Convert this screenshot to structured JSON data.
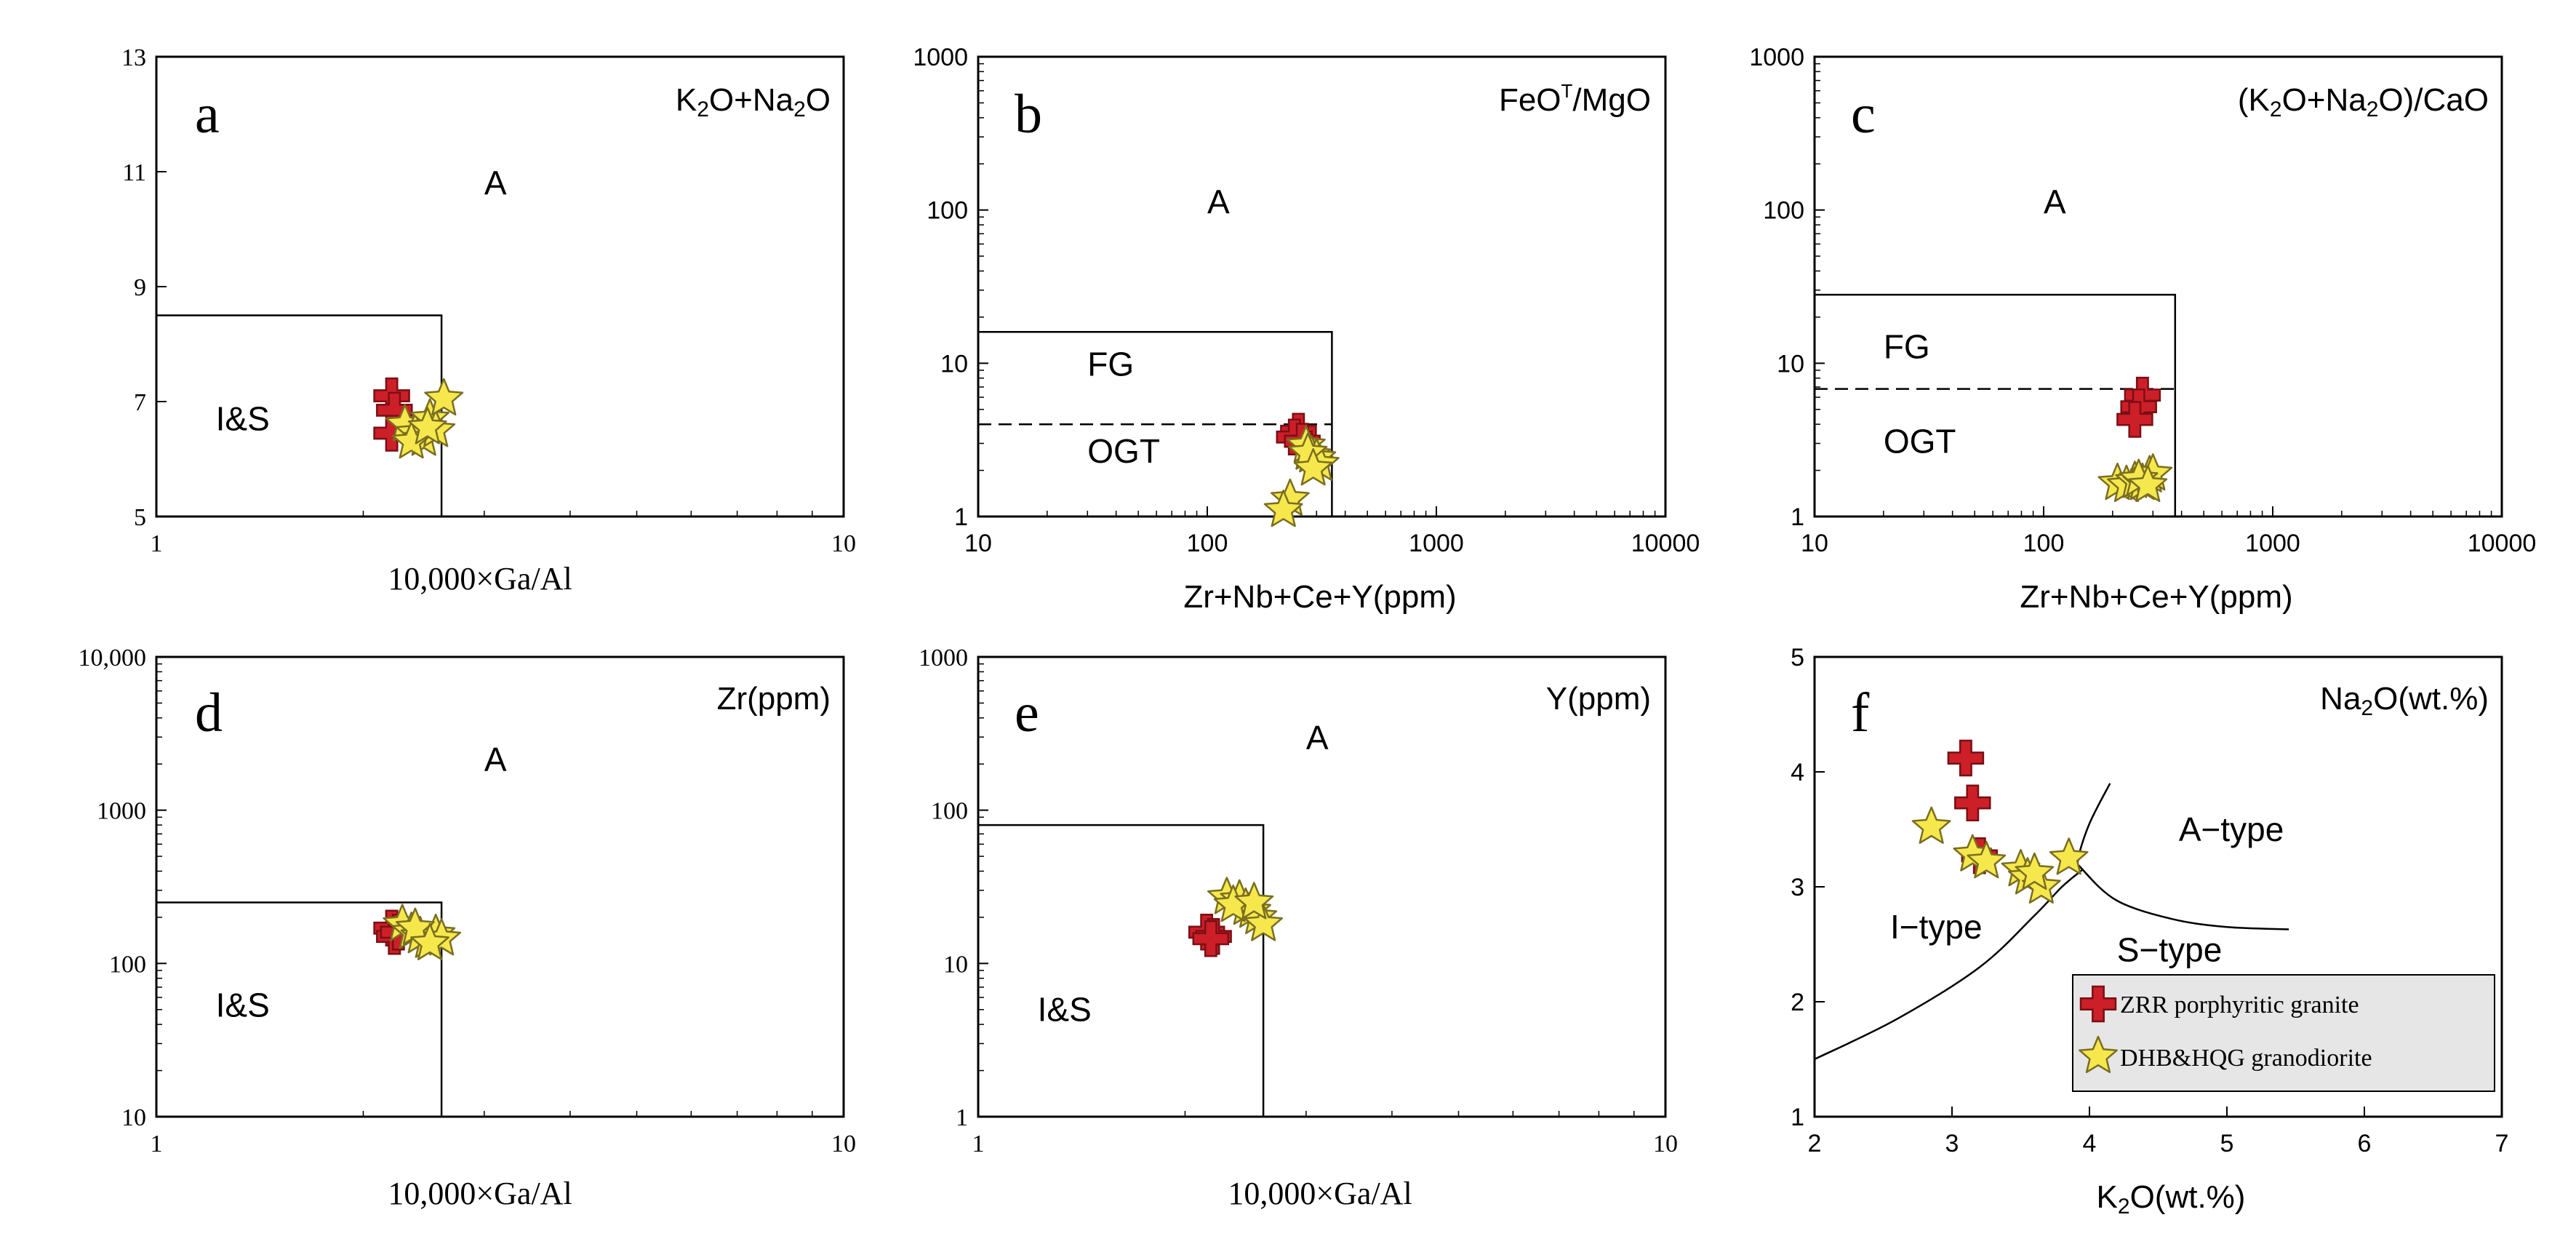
{
  "colors": {
    "zrr_fill": "#cc1f28",
    "zrr_stroke": "#7a0f14",
    "dhb_fill": "#f6e84c",
    "dhb_stroke": "#7a6e20",
    "legend_bg": "#e6e6e6"
  },
  "legend": {
    "position": "bottom-right of panel f",
    "items": [
      {
        "label": "ZRR porphyritic granite",
        "marker": "red-cross-icon",
        "series_key": "zrr"
      },
      {
        "label": "DHB&HQG granodiorite",
        "marker": "yellow-star-icon",
        "series_key": "dhb"
      }
    ]
  },
  "chart_data": [
    {
      "id": "a",
      "type": "scatter",
      "panel_label": "a",
      "corner_title": "K2O+Na2O",
      "xlabel": "10,000×Ga/Al",
      "xscale": "log",
      "xlim": [
        1,
        10
      ],
      "yscale": "linear",
      "ylim": [
        5,
        13
      ],
      "xticks": [
        {
          "v": 1,
          "label": "1"
        },
        {
          "v": 10,
          "label": "10"
        }
      ],
      "yticks": [
        {
          "v": 5,
          "label": "5"
        },
        {
          "v": 7,
          "label": "7"
        },
        {
          "v": 9,
          "label": "9"
        },
        {
          "v": 11,
          "label": "11"
        },
        {
          "v": 13,
          "label": "13"
        }
      ],
      "tick_font": "serif",
      "xlabel_font": "serif",
      "boundaries": [
        {
          "style": "solid",
          "points": [
            [
              1,
              8.5
            ],
            [
              2.6,
              8.5
            ],
            [
              2.6,
              5
            ]
          ]
        }
      ],
      "regions": [
        {
          "label": "A",
          "x": 3.0,
          "y": 10.6
        },
        {
          "label": "I&S",
          "x": 1.22,
          "y": 6.5
        }
      ],
      "series": [
        {
          "key": "zrr",
          "points": [
            [
              2.2,
              7.1
            ],
            [
              2.22,
              6.85
            ],
            [
              2.2,
              6.45
            ]
          ]
        },
        {
          "key": "dhb",
          "points": [
            [
              2.3,
              6.6
            ],
            [
              2.38,
              6.45
            ],
            [
              2.45,
              6.35
            ],
            [
              2.5,
              6.7
            ],
            [
              2.55,
              6.5
            ],
            [
              2.62,
              7.05
            ],
            [
              2.35,
              6.3
            ],
            [
              2.48,
              6.55
            ]
          ]
        }
      ]
    },
    {
      "id": "b",
      "type": "scatter",
      "panel_label": "b",
      "corner_title": "FeOT/MgO",
      "xlabel": "Zr+Nb+Ce+Y(ppm)",
      "xscale": "log",
      "xlim": [
        10,
        10000
      ],
      "yscale": "log",
      "ylim": [
        1,
        1000
      ],
      "xticks": [
        {
          "v": 10,
          "label": "10"
        },
        {
          "v": 100,
          "label": "100"
        },
        {
          "v": 1000,
          "label": "1000"
        },
        {
          "v": 10000,
          "label": "10000"
        }
      ],
      "yticks": [
        {
          "v": 1,
          "label": "1"
        },
        {
          "v": 10,
          "label": "10"
        },
        {
          "v": 100,
          "label": "100"
        },
        {
          "v": 1000,
          "label": "1000"
        }
      ],
      "tick_font": "sans",
      "xlabel_font": "sans",
      "boundaries": [
        {
          "style": "solid",
          "points": [
            [
              10,
              16
            ],
            [
              350,
              16
            ],
            [
              350,
              1
            ]
          ]
        },
        {
          "style": "dashed",
          "points": [
            [
              10,
              4
            ],
            [
              350,
              4
            ]
          ]
        }
      ],
      "regions": [
        {
          "label": "A",
          "x": 100,
          "y": 95
        },
        {
          "label": "FG",
          "x": 30,
          "y": 8.3
        },
        {
          "label": "OGT",
          "x": 30,
          "y": 2.25
        }
      ],
      "series": [
        {
          "key": "zrr",
          "points": [
            [
              250,
              3.6
            ],
            [
              240,
              3.3
            ],
            [
              260,
              3.1
            ]
          ]
        },
        {
          "key": "dhb",
          "points": [
            [
              270,
              2.9
            ],
            [
              285,
              2.5
            ],
            [
              300,
              2.4
            ],
            [
              310,
              2.2
            ],
            [
              275,
              2.6
            ],
            [
              230,
              1.3
            ],
            [
              215,
              1.1
            ],
            [
              290,
              2.05
            ]
          ]
        }
      ]
    },
    {
      "id": "c",
      "type": "scatter",
      "panel_label": "c",
      "corner_title": "(K2O+Na2O)/CaO",
      "xlabel": "Zr+Nb+Ce+Y(ppm)",
      "xscale": "log",
      "xlim": [
        10,
        10000
      ],
      "yscale": "log",
      "ylim": [
        1,
        1000
      ],
      "xticks": [
        {
          "v": 10,
          "label": "10"
        },
        {
          "v": 100,
          "label": "100"
        },
        {
          "v": 1000,
          "label": "1000"
        },
        {
          "v": 10000,
          "label": "10000"
        }
      ],
      "yticks": [
        {
          "v": 1,
          "label": "1"
        },
        {
          "v": 10,
          "label": "10"
        },
        {
          "v": 100,
          "label": "100"
        },
        {
          "v": 1000,
          "label": "1000"
        }
      ],
      "tick_font": "sans",
      "xlabel_font": "sans",
      "boundaries": [
        {
          "style": "solid",
          "points": [
            [
              10,
              28
            ],
            [
              375,
              28
            ],
            [
              375,
              1
            ]
          ]
        },
        {
          "style": "dashed",
          "points": [
            [
              10,
              6.8
            ],
            [
              375,
              6.8
            ]
          ]
        }
      ],
      "regions": [
        {
          "label": "A",
          "x": 100,
          "y": 95
        },
        {
          "label": "FG",
          "x": 20,
          "y": 10.8
        },
        {
          "label": "OGT",
          "x": 20,
          "y": 2.6
        }
      ],
      "series": [
        {
          "key": "zrr",
          "points": [
            [
              270,
              6.2
            ],
            [
              260,
              5.2
            ],
            [
              250,
              4.3
            ]
          ]
        },
        {
          "key": "dhb",
          "points": [
            [
              210,
              1.65
            ],
            [
              230,
              1.6
            ],
            [
              250,
              1.7
            ],
            [
              270,
              1.65
            ],
            [
              290,
              1.85
            ],
            [
              300,
              1.9
            ],
            [
              260,
              1.75
            ],
            [
              285,
              1.6
            ]
          ]
        }
      ]
    },
    {
      "id": "d",
      "type": "scatter",
      "panel_label": "d",
      "corner_title": "Zr(ppm)",
      "xlabel": "10,000×Ga/Al",
      "xscale": "log",
      "xlim": [
        1,
        10
      ],
      "yscale": "log",
      "ylim": [
        10,
        10000
      ],
      "xticks": [
        {
          "v": 1,
          "label": "1"
        },
        {
          "v": 10,
          "label": "10"
        }
      ],
      "yticks": [
        {
          "v": 10,
          "label": "10"
        },
        {
          "v": 100,
          "label": "100"
        },
        {
          "v": 1000,
          "label": "1000"
        },
        {
          "v": 10000,
          "label": "10,000"
        }
      ],
      "tick_font": "serif",
      "xlabel_font": "serif",
      "boundaries": [
        {
          "style": "solid",
          "points": [
            [
              1,
              250
            ],
            [
              2.6,
              250
            ],
            [
              2.6,
              10
            ]
          ]
        }
      ],
      "regions": [
        {
          "label": "A",
          "x": 3.0,
          "y": 1800
        },
        {
          "label": "I&S",
          "x": 1.22,
          "y": 45
        }
      ],
      "series": [
        {
          "key": "zrr",
          "points": [
            [
              2.2,
              170
            ],
            [
              2.22,
              150
            ],
            [
              2.25,
              160
            ]
          ]
        },
        {
          "key": "dhb",
          "points": [
            [
              2.28,
              180
            ],
            [
              2.35,
              160
            ],
            [
              2.42,
              150
            ],
            [
              2.48,
              140
            ],
            [
              2.55,
              155
            ],
            [
              2.6,
              145
            ],
            [
              2.38,
              170
            ],
            [
              2.5,
              135
            ]
          ]
        }
      ]
    },
    {
      "id": "e",
      "type": "scatter",
      "panel_label": "e",
      "corner_title": "Y(ppm)",
      "xlabel": "10,000×Ga/Al",
      "xscale": "log",
      "xlim": [
        1,
        10
      ],
      "yscale": "log",
      "ylim": [
        1,
        1000
      ],
      "xticks": [
        {
          "v": 1,
          "label": "1"
        },
        {
          "v": 10,
          "label": "10"
        }
      ],
      "yticks": [
        {
          "v": 1,
          "label": "1"
        },
        {
          "v": 10,
          "label": "10"
        },
        {
          "v": 100,
          "label": "100"
        },
        {
          "v": 1000,
          "label": "1000"
        }
      ],
      "tick_font": "serif",
      "xlabel_font": "sans",
      "boundaries": [
        {
          "style": "solid",
          "points": [
            [
              1,
              80
            ],
            [
              2.6,
              80
            ],
            [
              2.6,
              1
            ]
          ]
        }
      ],
      "regions": [
        {
          "label": "A",
          "x": 3.0,
          "y": 250
        },
        {
          "label": "I&S",
          "x": 1.22,
          "y": 4.2
        }
      ],
      "series": [
        {
          "key": "zrr",
          "points": [
            [
              2.15,
              16
            ],
            [
              2.2,
              15
            ],
            [
              2.18,
              14.5
            ]
          ]
        },
        {
          "key": "dhb",
          "points": [
            [
              2.3,
              27
            ],
            [
              2.4,
              26
            ],
            [
              2.45,
              23
            ],
            [
              2.5,
              22
            ],
            [
              2.55,
              20
            ],
            [
              2.6,
              18
            ],
            [
              2.35,
              24
            ],
            [
              2.52,
              25
            ]
          ]
        }
      ]
    },
    {
      "id": "f",
      "type": "scatter",
      "panel_label": "f",
      "corner_title": "Na2O(wt.%)",
      "xlabel": "K2O(wt.%)",
      "xscale": "linear",
      "xlim": [
        2,
        7
      ],
      "yscale": "linear",
      "ylim": [
        1,
        5
      ],
      "xticks": [
        {
          "v": 2,
          "label": "2"
        },
        {
          "v": 3,
          "label": "3"
        },
        {
          "v": 4,
          "label": "4"
        },
        {
          "v": 5,
          "label": "5"
        },
        {
          "v": 6,
          "label": "6"
        },
        {
          "v": 7,
          "label": "7"
        }
      ],
      "yticks": [
        {
          "v": 1,
          "label": "1"
        },
        {
          "v": 2,
          "label": "2"
        },
        {
          "v": 3,
          "label": "3"
        },
        {
          "v": 4,
          "label": "4"
        },
        {
          "v": 5,
          "label": "5"
        }
      ],
      "tick_font": "sans",
      "xlabel_font": "sans",
      "curves": [
        {
          "style": "solid",
          "points": [
            [
              2.0,
              1.5
            ],
            [
              2.6,
              1.85
            ],
            [
              3.2,
              2.3
            ],
            [
              3.6,
              2.75
            ],
            [
              3.8,
              3.0
            ],
            [
              3.95,
              3.15
            ]
          ]
        },
        {
          "style": "solid",
          "points": [
            [
              4.15,
              3.9
            ],
            [
              4.0,
              3.55
            ],
            [
              3.92,
              3.25
            ],
            [
              3.95,
              3.15
            ],
            [
              4.2,
              2.88
            ],
            [
              4.6,
              2.72
            ],
            [
              5.0,
              2.65
            ],
            [
              5.45,
              2.63
            ]
          ]
        }
      ],
      "regions": [
        {
          "label": "A−type",
          "x": 4.65,
          "y": 3.4
        },
        {
          "label": "I−type",
          "x": 2.55,
          "y": 2.55
        },
        {
          "label": "S−type",
          "x": 4.2,
          "y": 2.35
        }
      ],
      "series": [
        {
          "key": "zrr",
          "points": [
            [
              3.1,
              4.12
            ],
            [
              3.15,
              3.73
            ],
            [
              3.2,
              3.27
            ]
          ]
        },
        {
          "key": "dhb",
          "points": [
            [
              2.85,
              3.52
            ],
            [
              3.15,
              3.28
            ],
            [
              3.25,
              3.22
            ],
            [
              3.5,
              3.15
            ],
            [
              3.55,
              3.08
            ],
            [
              3.65,
              3.0
            ],
            [
              3.85,
              3.25
            ],
            [
              3.6,
              3.12
            ]
          ]
        }
      ]
    }
  ]
}
